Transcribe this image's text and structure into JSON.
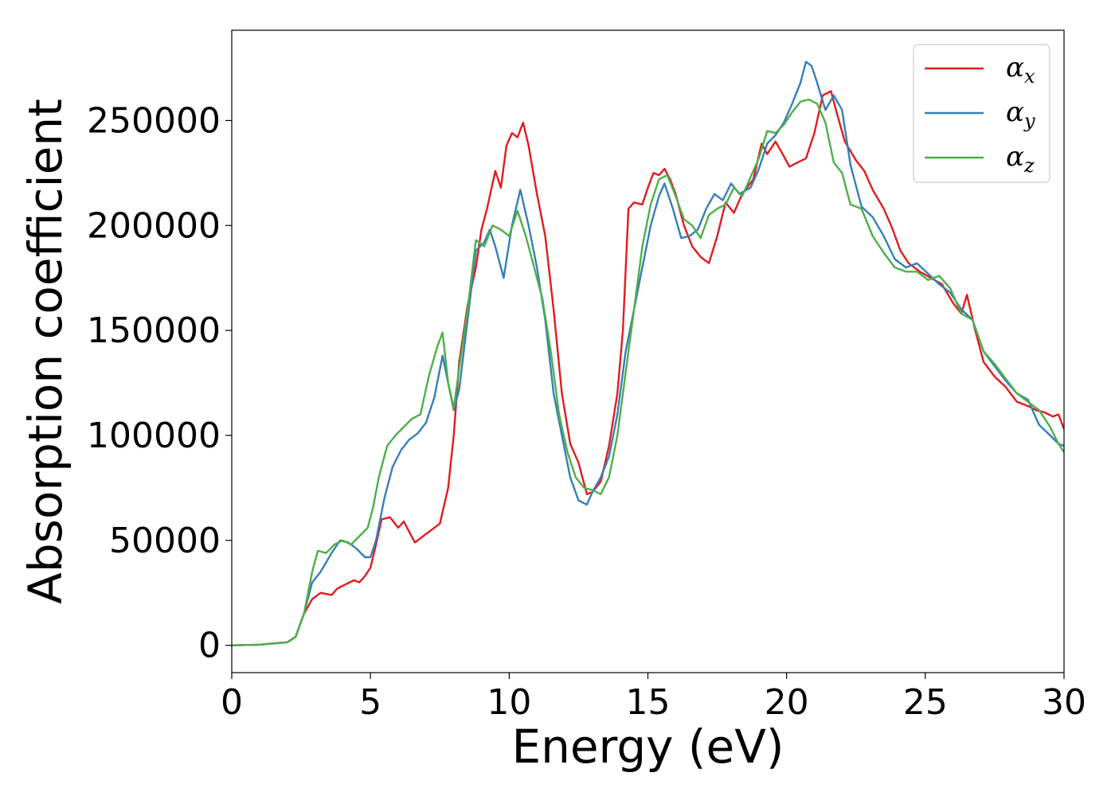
{
  "chart_data": {
    "type": "line",
    "title": "",
    "xlabel": "Energy (eV)",
    "ylabel": "Absorption coefficient",
    "xlim": [
      0,
      30
    ],
    "ylim": [
      -13000,
      293000
    ],
    "xticks": [
      0,
      5,
      10,
      15,
      20,
      25,
      30
    ],
    "yticks": [
      0,
      50000,
      100000,
      150000,
      200000,
      250000
    ],
    "grid": false,
    "legend_position": "top-right",
    "series": [
      {
        "name": "α_x",
        "legend_base": "α",
        "legend_sub": "x",
        "color": "#e41a1c",
        "x": [
          0,
          1,
          2,
          2.3,
          2.6,
          2.9,
          3.2,
          3.6,
          3.8,
          4.1,
          4.4,
          4.6,
          4.8,
          5.0,
          5.2,
          5.4,
          5.7,
          6.0,
          6.2,
          6.4,
          6.6,
          6.8,
          7.0,
          7.2,
          7.5,
          7.8,
          8.0,
          8.2,
          8.5,
          8.8,
          9.0,
          9.2,
          9.5,
          9.7,
          9.9,
          10.1,
          10.3,
          10.5,
          10.7,
          11.0,
          11.3,
          11.6,
          11.9,
          12.2,
          12.5,
          12.8,
          13.0,
          13.3,
          13.6,
          13.9,
          14.1,
          14.3,
          14.5,
          14.8,
          15.0,
          15.2,
          15.4,
          15.6,
          15.8,
          16.0,
          16.3,
          16.6,
          16.9,
          17.2,
          17.5,
          17.8,
          18.1,
          18.4,
          18.8,
          19.1,
          19.3,
          19.6,
          19.9,
          20.1,
          20.4,
          20.7,
          21.0,
          21.3,
          21.6,
          21.8,
          22.1,
          22.5,
          22.8,
          23.1,
          23.5,
          23.8,
          24.1,
          24.4,
          24.8,
          25.2,
          25.6,
          26.0,
          26.3,
          26.5,
          26.8,
          27.1,
          27.5,
          27.9,
          28.3,
          28.7,
          29.0,
          29.3,
          29.6,
          29.8,
          30.0
        ],
        "y": [
          0,
          300,
          1500,
          4000,
          15000,
          22000,
          25000,
          24000,
          27000,
          29000,
          31000,
          30000,
          33000,
          37000,
          48000,
          60000,
          61000,
          56000,
          59000,
          54000,
          49000,
          51000,
          53000,
          55000,
          58000,
          75000,
          100000,
          135000,
          162000,
          180000,
          198000,
          208000,
          226000,
          218000,
          238000,
          244000,
          242000,
          249000,
          238000,
          215000,
          195000,
          160000,
          120000,
          96000,
          87000,
          72000,
          73000,
          78000,
          95000,
          120000,
          150000,
          208000,
          211000,
          210000,
          218000,
          225000,
          224000,
          227000,
          222000,
          215000,
          200000,
          190000,
          185000,
          182000,
          195000,
          211000,
          206000,
          215000,
          222000,
          239000,
          234000,
          240000,
          233000,
          228000,
          230000,
          232000,
          244000,
          262000,
          264000,
          254000,
          240000,
          231000,
          226000,
          217000,
          208000,
          199000,
          188000,
          182000,
          178000,
          175000,
          172000,
          163000,
          158000,
          167000,
          150000,
          135000,
          128000,
          123000,
          116000,
          114000,
          112000,
          111000,
          109000,
          110000,
          103000
        ]
      },
      {
        "name": "α_y",
        "legend_base": "α",
        "legend_sub": "y",
        "color": "#377eb8",
        "x": [
          0,
          1,
          2,
          2.3,
          2.6,
          2.9,
          3.2,
          3.6,
          3.9,
          4.2,
          4.5,
          4.8,
          5.0,
          5.2,
          5.5,
          5.8,
          6.1,
          6.4,
          6.7,
          7.0,
          7.3,
          7.6,
          7.8,
          8.0,
          8.2,
          8.5,
          8.8,
          9.1,
          9.3,
          9.5,
          9.8,
          10.1,
          10.4,
          10.7,
          11.0,
          11.3,
          11.6,
          11.9,
          12.2,
          12.5,
          12.8,
          13.0,
          13.3,
          13.6,
          13.9,
          14.2,
          14.5,
          14.8,
          15.1,
          15.4,
          15.6,
          15.9,
          16.2,
          16.5,
          16.8,
          17.1,
          17.4,
          17.7,
          18.0,
          18.3,
          18.7,
          19.0,
          19.3,
          19.6,
          19.9,
          20.2,
          20.5,
          20.7,
          20.9,
          21.1,
          21.4,
          21.7,
          22.0,
          22.3,
          22.7,
          23.1,
          23.5,
          23.9,
          24.3,
          24.7,
          25.1,
          25.5,
          25.9,
          26.3,
          26.7,
          27.1,
          27.5,
          27.9,
          28.3,
          28.7,
          29.1,
          29.5,
          29.8,
          30.0
        ],
        "y": [
          0,
          300,
          1500,
          4000,
          15000,
          30000,
          35000,
          44000,
          50000,
          49000,
          46000,
          42000,
          42000,
          50000,
          70000,
          85000,
          93000,
          98000,
          101000,
          106000,
          118000,
          138000,
          125000,
          112000,
          122000,
          155000,
          188000,
          192000,
          198000,
          190000,
          175000,
          200000,
          217000,
          200000,
          180000,
          155000,
          120000,
          100000,
          80000,
          69000,
          67000,
          73000,
          80000,
          90000,
          110000,
          140000,
          160000,
          180000,
          200000,
          214000,
          220000,
          208000,
          194000,
          195000,
          198000,
          208000,
          215000,
          212000,
          220000,
          215000,
          218000,
          227000,
          239000,
          243000,
          249000,
          258000,
          268000,
          278000,
          276000,
          268000,
          255000,
          262000,
          255000,
          229000,
          209000,
          204000,
          195000,
          184000,
          180000,
          182000,
          177000,
          172000,
          168000,
          160000,
          155000,
          140000,
          133000,
          126000,
          120000,
          117000,
          105000,
          100000,
          96000,
          95000
        ],
        "note": ""
      },
      {
        "name": "α_z",
        "legend_base": "α",
        "legend_sub": "z",
        "color": "#4daf4a",
        "x": [
          0,
          1,
          2,
          2.3,
          2.6,
          2.9,
          3.1,
          3.4,
          3.7,
          4.0,
          4.3,
          4.6,
          4.9,
          5.1,
          5.3,
          5.6,
          5.9,
          6.2,
          6.5,
          6.8,
          7.1,
          7.4,
          7.6,
          7.8,
          8.0,
          8.2,
          8.5,
          8.8,
          9.1,
          9.4,
          9.7,
          10.0,
          10.3,
          10.6,
          10.9,
          11.2,
          11.5,
          11.8,
          12.1,
          12.4,
          12.7,
          13.0,
          13.3,
          13.6,
          13.9,
          14.2,
          14.5,
          14.8,
          15.1,
          15.4,
          15.7,
          16.0,
          16.3,
          16.6,
          16.9,
          17.2,
          17.5,
          17.8,
          18.1,
          18.4,
          18.7,
          19.0,
          19.3,
          19.6,
          19.9,
          20.2,
          20.5,
          20.8,
          21.1,
          21.4,
          21.7,
          22.0,
          22.3,
          22.7,
          23.1,
          23.5,
          23.9,
          24.3,
          24.7,
          25.1,
          25.5,
          25.9,
          26.3,
          26.7,
          27.1,
          27.5,
          27.9,
          28.3,
          28.7,
          29.1,
          29.5,
          29.8,
          30.0
        ],
        "y": [
          0,
          300,
          1500,
          4000,
          15000,
          35000,
          45000,
          44000,
          48000,
          50000,
          48000,
          52000,
          56000,
          66000,
          80000,
          95000,
          100000,
          104000,
          108000,
          110000,
          128000,
          142000,
          149000,
          125000,
          113000,
          132000,
          160000,
          193000,
          190000,
          200000,
          198000,
          195000,
          207000,
          195000,
          180000,
          165000,
          140000,
          110000,
          92000,
          80000,
          75000,
          74000,
          72000,
          80000,
          100000,
          130000,
          160000,
          190000,
          210000,
          222000,
          224000,
          214000,
          203000,
          200000,
          194000,
          205000,
          208000,
          210000,
          218000,
          214000,
          223000,
          232000,
          245000,
          244000,
          248000,
          254000,
          259000,
          260000,
          258000,
          249000,
          230000,
          225000,
          210000,
          208000,
          195000,
          187000,
          180000,
          178000,
          178000,
          174000,
          176000,
          170000,
          158000,
          155000,
          140000,
          134000,
          127000,
          120000,
          116000,
          112000,
          104000,
          96000,
          92000
        ]
      }
    ]
  }
}
